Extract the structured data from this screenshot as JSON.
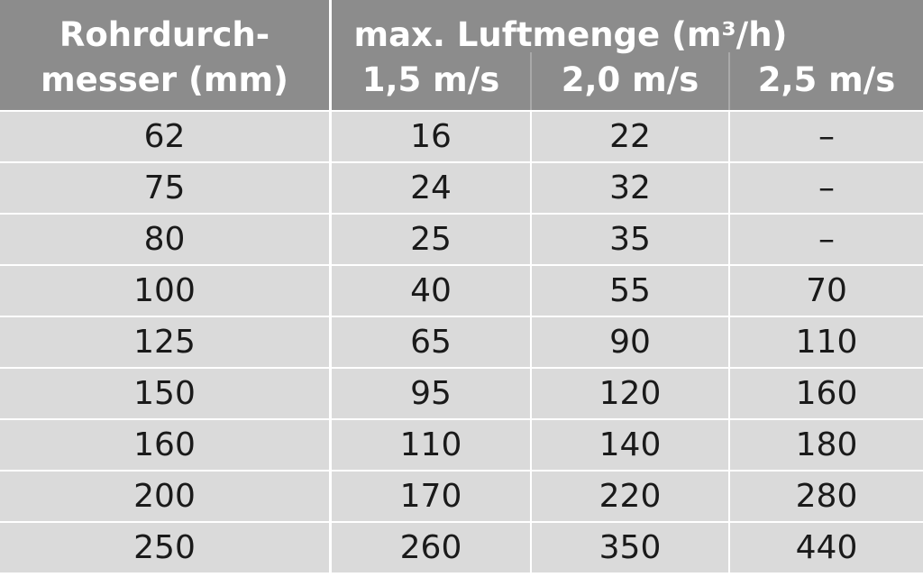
{
  "header": {
    "first_column": [
      "Rohrdurch-",
      "messer (mm)"
    ],
    "group": "max. Luftmenge (m³/h)",
    "speeds": [
      "1,5 m/s",
      "2,0 m/s",
      "2,5 m/s"
    ]
  },
  "table": {
    "rows": [
      [
        62,
        16,
        22,
        "–"
      ],
      [
        75,
        24,
        32,
        "–"
      ],
      [
        80,
        25,
        35,
        "–"
      ],
      [
        100,
        40,
        55,
        70
      ],
      [
        125,
        65,
        90,
        110
      ],
      [
        150,
        95,
        120,
        160
      ],
      [
        160,
        110,
        140,
        180
      ],
      [
        200,
        170,
        220,
        280
      ],
      [
        250,
        260,
        350,
        440
      ]
    ]
  }
}
